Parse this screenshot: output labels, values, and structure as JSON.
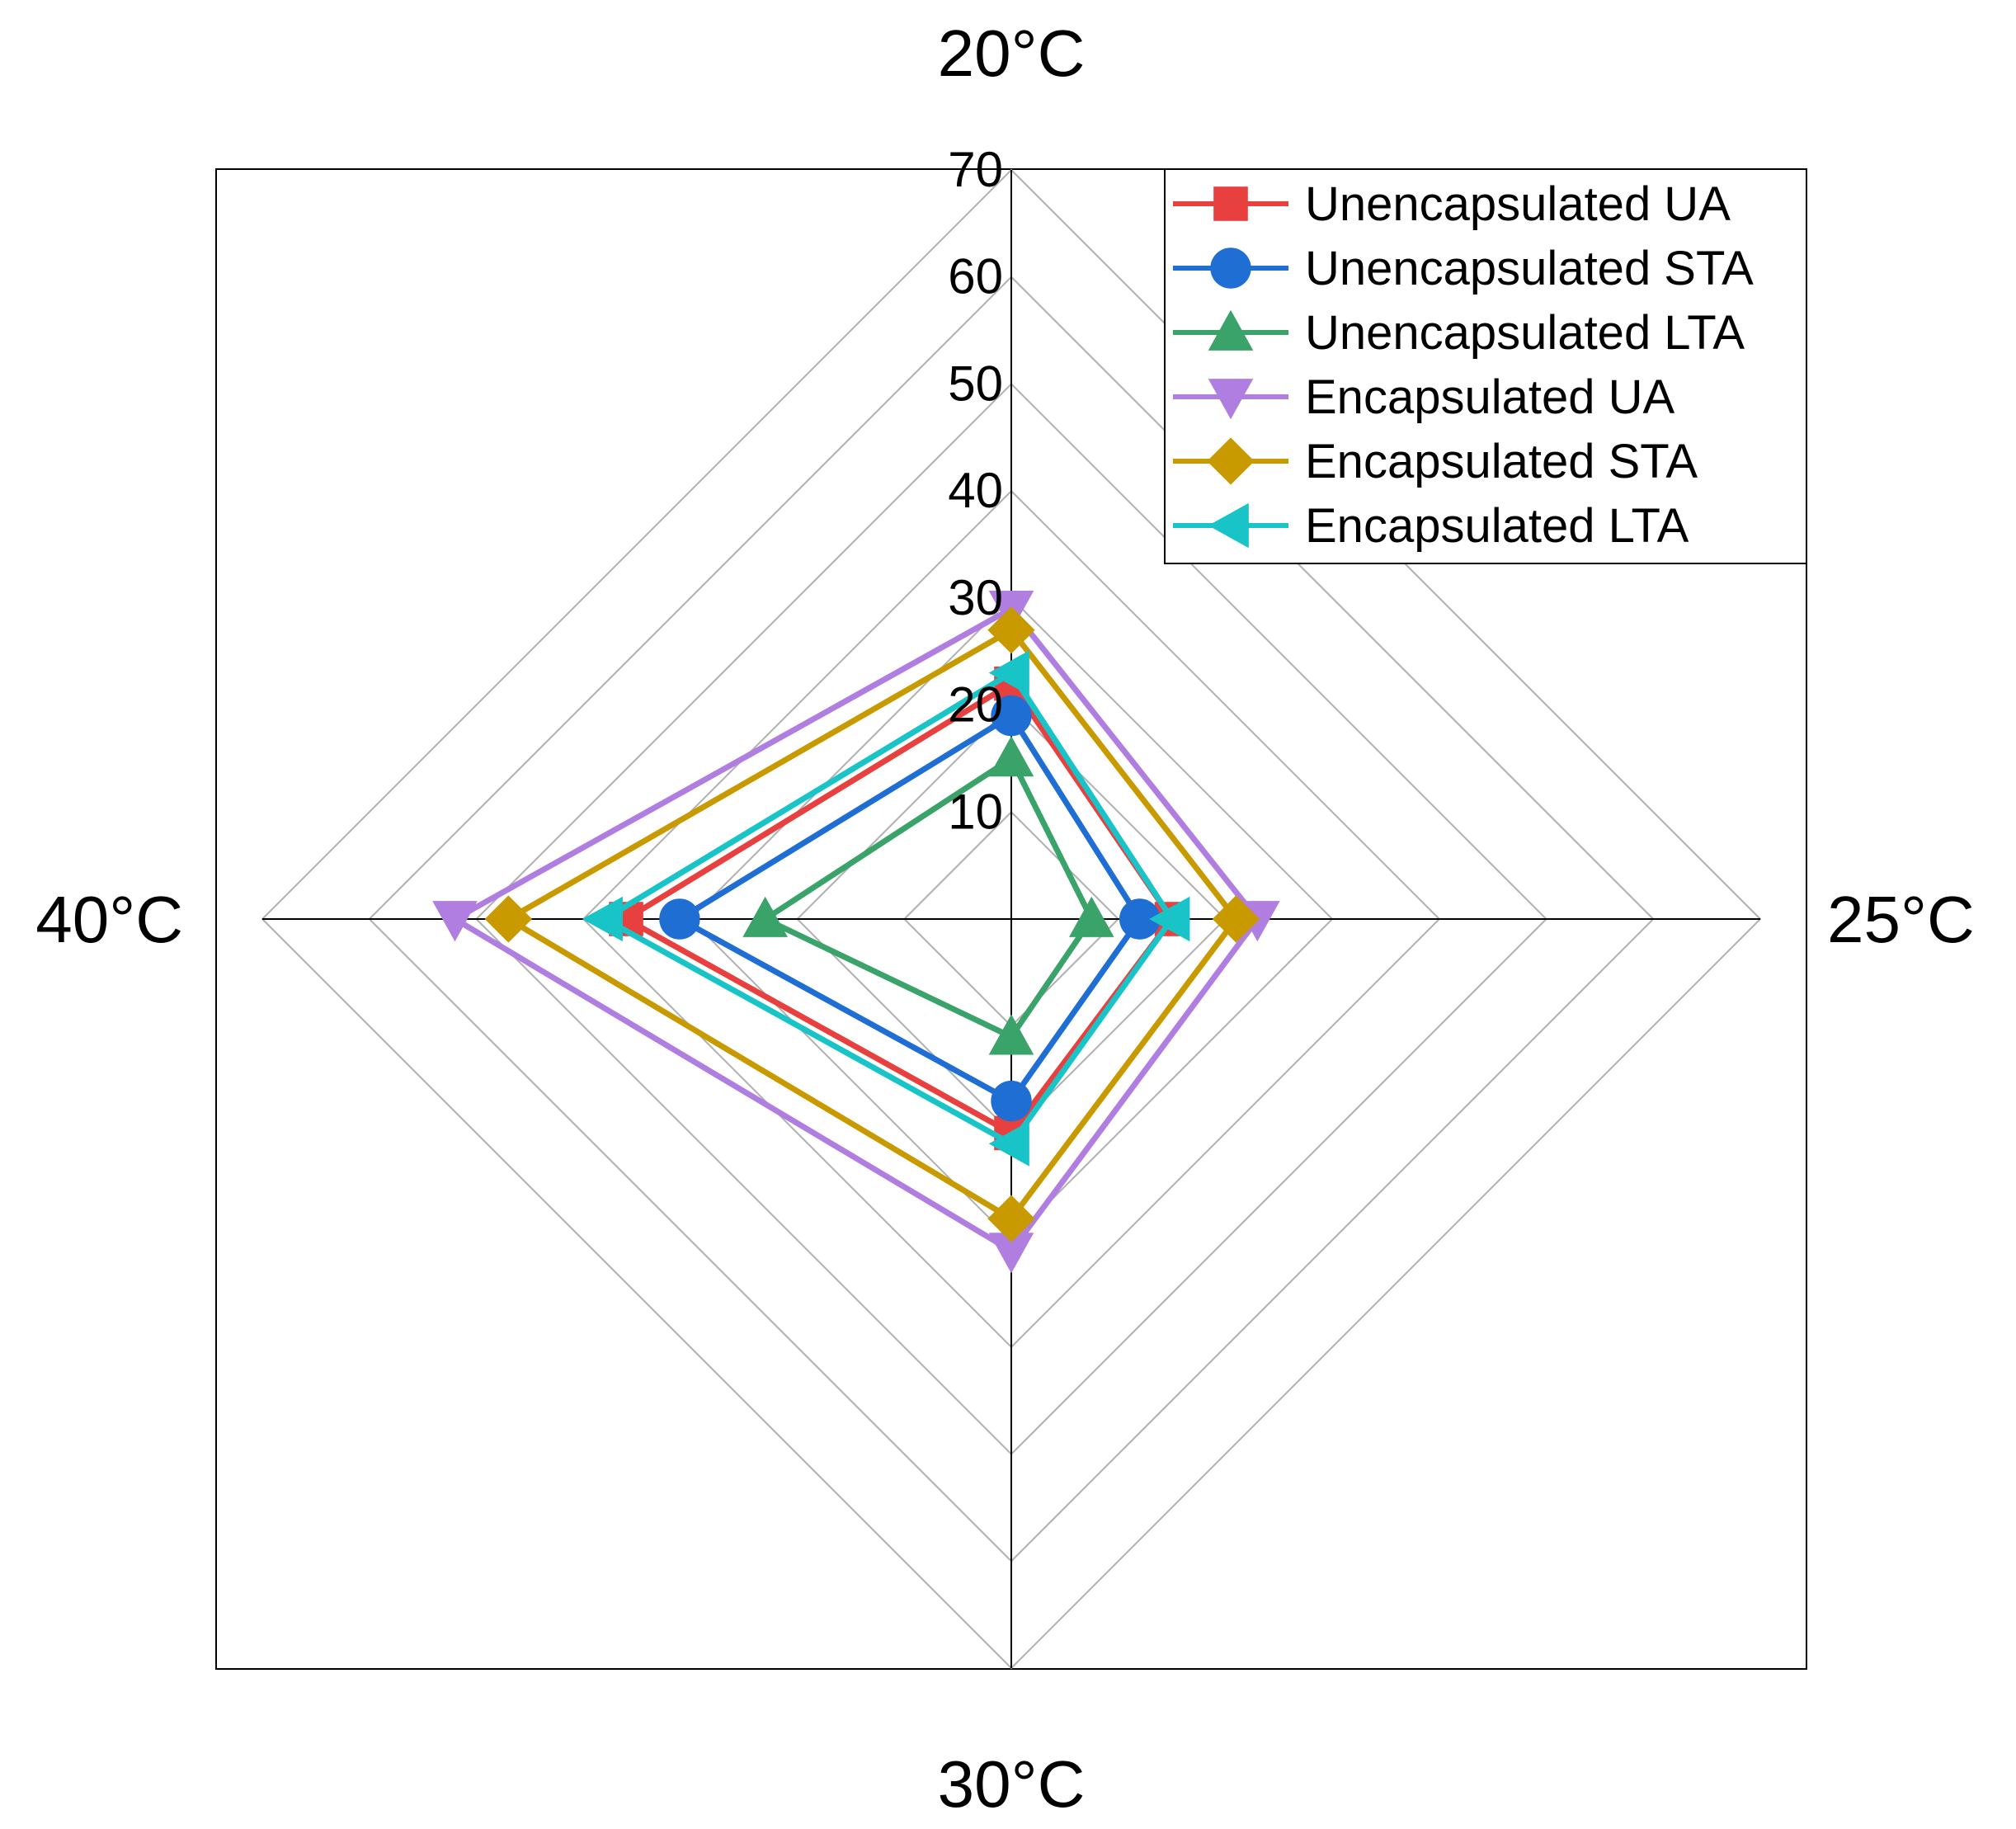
{
  "chart_data": {
    "type": "radar",
    "title": "",
    "axes": [
      "20°C",
      "25°C",
      "30°C",
      "40°C"
    ],
    "r_range": [
      0,
      70
    ],
    "r_ticks": [
      10,
      20,
      30,
      40,
      50,
      60,
      70
    ],
    "grid_step": 10,
    "legend_position": "top-right",
    "series": [
      {
        "name": "Unencapsulated UA",
        "color": "#e8403f",
        "marker": "square",
        "values": [
          22,
          15,
          20,
          36
        ]
      },
      {
        "name": "Unencapsulated STA",
        "color": "#1f6ed4",
        "marker": "circle",
        "values": [
          19,
          12,
          17,
          31
        ]
      },
      {
        "name": "Unencapsulated LTA",
        "color": "#3aa36a",
        "marker": "triangle-up",
        "values": [
          15,
          7.5,
          11,
          23
        ]
      },
      {
        "name": "Encapsulated UA",
        "color": "#b07ee0",
        "marker": "triangle-down",
        "values": [
          29,
          23,
          31,
          52
        ]
      },
      {
        "name": "Encapsulated STA",
        "color": "#c89a00",
        "marker": "diamond",
        "values": [
          27,
          21,
          28,
          47
        ]
      },
      {
        "name": "Encapsulated LTA",
        "color": "#19c4c8",
        "marker": "triangle-left",
        "values": [
          23,
          15,
          21,
          38
        ]
      }
    ]
  }
}
